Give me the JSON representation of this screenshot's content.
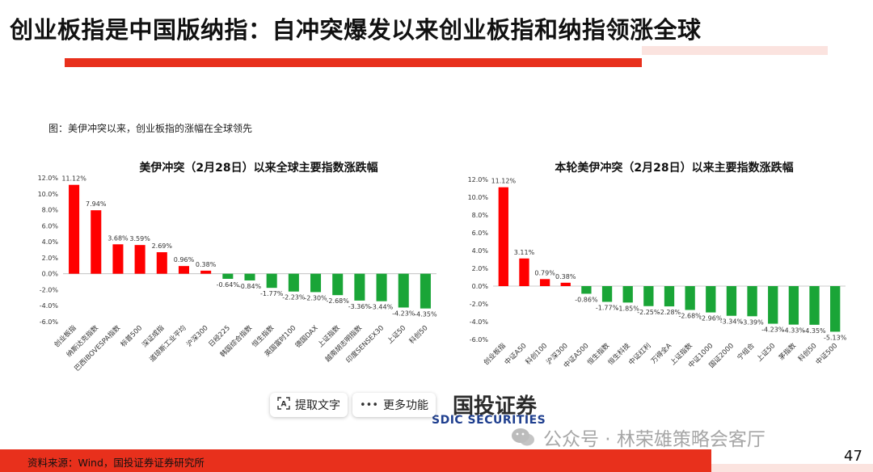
{
  "title": "创业板指是中国版纳指：自冲突爆发以来创业板指和纳指领涨全球",
  "caption": "图：美伊冲突以来，创业板指的涨幅在全球领先",
  "source": "资料来源：Wind，国投证券证券研究所",
  "page_number": "47",
  "toolbar": {
    "extract_text_label": "提取文字",
    "more_label": "更多功能"
  },
  "logo": {
    "cn": "国投证券",
    "en": "SDIC SECURITIES"
  },
  "watermark": "公众号 · 林荣雄策略会客厅",
  "colors": {
    "accent_red": "#e8301c",
    "bar_up": "#ff0000",
    "bar_down": "#1aa537"
  },
  "chart_data": [
    {
      "type": "bar",
      "title": "美伊冲突（2月28日）以来全球主要指数涨跌幅",
      "categories": [
        "创业板指",
        "纳斯达克指数",
        "巴西IBOVESPA指数",
        "标普500",
        "深证成指",
        "道琼斯工业平均",
        "沪深300",
        "日经225",
        "韩国综合指数",
        "恒生指数",
        "英国富时100",
        "德国DAX",
        "上证指数",
        "越南胡志明指数",
        "印度SENSEX30",
        "上证50",
        "科创50"
      ],
      "values": [
        11.12,
        7.94,
        3.68,
        3.59,
        2.69,
        0.96,
        0.38,
        -0.64,
        -0.84,
        -1.77,
        -2.23,
        -2.3,
        -2.68,
        -3.36,
        -3.44,
        -4.23,
        -4.35
      ],
      "data_labels": [
        "11.12%",
        "7.94%",
        "3.68%",
        "3.59%",
        "2.69%",
        "0.96%",
        "0.38%",
        "-0.64%",
        "-0.84%",
        "-1.77%",
        "-2.23%",
        "-2.30%",
        "-2.68%",
        "-3.36%",
        "-3.44%",
        "-4.23%",
        "-4.35%"
      ],
      "yticks": [
        "12.0%",
        "10.0%",
        "8.0%",
        "6.0%",
        "4.0%",
        "2.0%",
        "0.0%",
        "-2.0%",
        "-4.0%",
        "-6.0%"
      ],
      "ylim": [
        -6,
        12
      ],
      "grid": false,
      "legend": "none"
    },
    {
      "type": "bar",
      "title": "本轮美伊冲突（2月28日）以来主要指数涨跌幅",
      "categories": [
        "创业板指",
        "中证A50",
        "科创100",
        "沪深300",
        "中证A500",
        "恒生指数",
        "恒生科技",
        "中证红利",
        "万得全A",
        "上证指数",
        "中证1000",
        "国证2000",
        "宁组合",
        "上证50",
        "茅指数",
        "科创50",
        "中证500"
      ],
      "values": [
        11.12,
        3.11,
        0.79,
        0.38,
        -0.86,
        -1.77,
        -1.85,
        -2.25,
        -2.28,
        -2.68,
        -2.96,
        -3.34,
        -3.39,
        -4.23,
        -4.33,
        -4.35,
        -5.13
      ],
      "data_labels": [
        "11.12%",
        "3.11%",
        "0.79%",
        "0.38%",
        "-0.86%",
        "-1.77%",
        "-1.85%",
        "-2.25%",
        "-2.28%",
        "-2.68%",
        "-2.96%",
        "-3.34%",
        "-3.39%",
        "-4.23%",
        "-4.33%",
        "-4.35%",
        "-5.13%"
      ],
      "yticks": [
        "12.0%",
        "10.0%",
        "8.0%",
        "6.0%",
        "4.0%",
        "2.0%",
        "0.0%",
        "-2.0%",
        "-4.0%",
        "-6.0%"
      ],
      "ylim": [
        -6,
        12
      ],
      "grid": false,
      "legend": "none"
    }
  ]
}
